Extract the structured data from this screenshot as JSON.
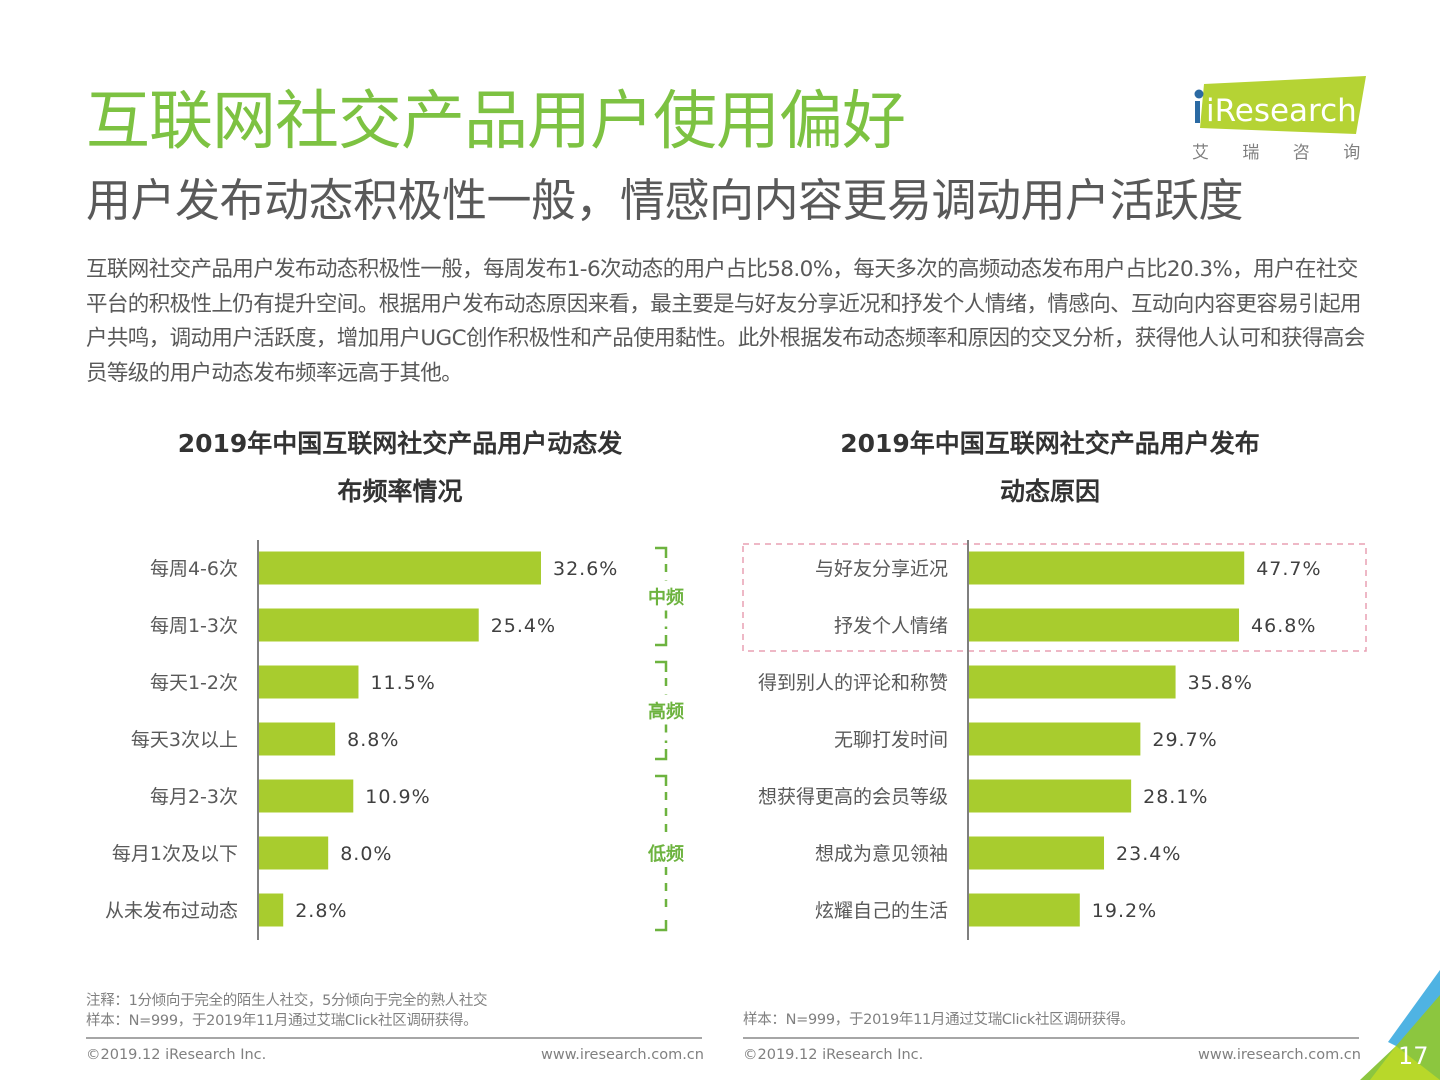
{
  "header": {
    "title": "互联网社交产品用户使用偏好",
    "subtitle": "用户发布动态积极性一般，情感向内容更易调动用户活跃度",
    "summary": "互联网社交产品用户发布动态积极性一般，每周发布1-6次动态的用户占比58.0%，每天多次的高频动态发布用户占比20.3%，用户在社交平台的积极性上仍有提升空间。根据用户发布动态原因来看，最主要是与好友分享近况和抒发个人情绪，情感向、互动向内容更容易引起用户共鸣，调动用户活跃度，增加用户UGC创作积极性和产品使用黏性。此外根据发布动态频率和原因的交叉分析，获得他人认可和获得高会员等级的用户动态发布频率远高于其他。"
  },
  "logo": {
    "text": "iResearch",
    "cn": "艾 瑞 咨 询"
  },
  "colors": {
    "bar": "#a8cc2e",
    "title_green": "#7dc242",
    "group_green": "#6db33f",
    "highlight_border": "#e8a0b4",
    "axis": "#7f7f7f"
  },
  "chart_data": [
    {
      "type": "bar",
      "orientation": "horizontal",
      "title_line1": "2019年中国互联网社交产品用户动态发",
      "title_line2": "布频率情况",
      "categories": [
        "每周4-6次",
        "每周1-3次",
        "每天1-2次",
        "每天3次以上",
        "每月2-3次",
        "每月1次及以下",
        "从未发布过动态"
      ],
      "values": [
        32.6,
        25.4,
        11.5,
        8.8,
        10.9,
        8.0,
        2.8
      ],
      "labels": [
        "32.6%",
        "25.4%",
        "11.5%",
        "8.8%",
        "10.9%",
        "8.0%",
        "2.8%"
      ],
      "xlim": [
        0,
        36
      ],
      "groups": [
        {
          "label": "中频",
          "start": 0,
          "end": 1
        },
        {
          "label": "高频",
          "start": 2,
          "end": 3
        },
        {
          "label": "低频",
          "start": 4,
          "end": 6
        }
      ]
    },
    {
      "type": "bar",
      "orientation": "horizontal",
      "title_line1": "2019年中国互联网社交产品用户发布",
      "title_line2": "动态原因",
      "categories": [
        "与好友分享近况",
        "抒发个人情绪",
        "得到别人的评论和称赞",
        "无聊打发时间",
        "想获得更高的会员等级",
        "想成为意见领袖",
        "炫耀自己的生活"
      ],
      "values": [
        47.7,
        46.8,
        35.8,
        29.7,
        28.1,
        23.4,
        19.2
      ],
      "labels": [
        "47.7%",
        "46.8%",
        "35.8%",
        "29.7%",
        "28.1%",
        "23.4%",
        "19.2%"
      ],
      "xlim": [
        0,
        60
      ],
      "highlight": {
        "start": 0,
        "end": 1
      }
    }
  ],
  "footer": {
    "left_note1": "注释：1分倾向于完全的陌生人社交，5分倾向于完全的熟人社交",
    "left_note2": "样本：N=999，于2019年11月通过艾瑞Click社区调研获得。",
    "right_note": "样本：N=999，于2019年11月通过艾瑞Click社区调研获得。",
    "copyright_left": "©2019.12 iResearch Inc.",
    "url_left": "www.iresearch.com.cn",
    "copyright_right": "©2019.12 iResearch Inc.",
    "url_right": "www.iresearch.com.cn",
    "page_number": "17"
  }
}
